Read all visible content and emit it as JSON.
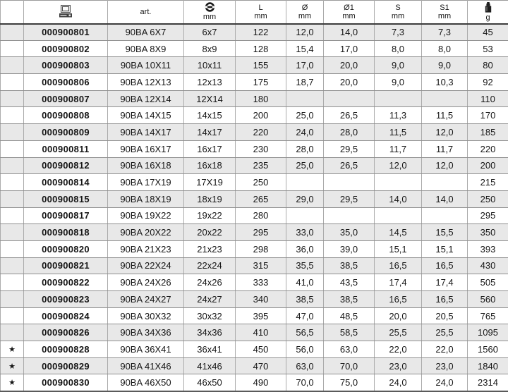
{
  "table": {
    "columns": [
      {
        "key": "star",
        "label": "",
        "unit": ""
      },
      {
        "key": "edp",
        "label": "",
        "unit": "",
        "icon": "computer-icon"
      },
      {
        "key": "art",
        "label": "art.",
        "unit": ""
      },
      {
        "key": "size",
        "label": "",
        "unit": "mm",
        "icon": "ring-size-icon"
      },
      {
        "key": "L",
        "label": "L",
        "unit": "mm"
      },
      {
        "key": "d",
        "label": "Ø",
        "unit": "mm"
      },
      {
        "key": "d1",
        "label": "Ø1",
        "unit": "mm"
      },
      {
        "key": "s",
        "label": "S",
        "unit": "mm"
      },
      {
        "key": "s1",
        "label": "S1",
        "unit": "mm"
      },
      {
        "key": "g",
        "label": "",
        "unit": "g",
        "icon": "weight-icon"
      }
    ],
    "star_glyph": "★",
    "rows": [
      [
        "",
        "000900801",
        "90BA 6X7",
        "6x7",
        "122",
        "12,0",
        "14,0",
        "7,3",
        "7,3",
        "45"
      ],
      [
        "",
        "000900802",
        "90BA 8X9",
        "8x9",
        "128",
        "15,4",
        "17,0",
        "8,0",
        "8,0",
        "53"
      ],
      [
        "",
        "000900803",
        "90BA 10X11",
        "10x11",
        "155",
        "17,0",
        "20,0",
        "9,0",
        "9,0",
        "80"
      ],
      [
        "",
        "000900806",
        "90BA 12X13",
        "12x13",
        "175",
        "18,7",
        "20,0",
        "9,0",
        "10,3",
        "92"
      ],
      [
        "",
        "000900807",
        "90BA 12X14",
        "12X14",
        "180",
        "",
        "",
        "",
        "",
        "110"
      ],
      [
        "",
        "000900808",
        "90BA 14X15",
        "14x15",
        "200",
        "25,0",
        "26,5",
        "11,3",
        "11,5",
        "170"
      ],
      [
        "",
        "000900809",
        "90BA 14X17",
        "14x17",
        "220",
        "24,0",
        "28,0",
        "11,5",
        "12,0",
        "185"
      ],
      [
        "",
        "000900811",
        "90BA 16X17",
        "16x17",
        "230",
        "28,0",
        "29,5",
        "11,7",
        "11,7",
        "220"
      ],
      [
        "",
        "000900812",
        "90BA 16X18",
        "16x18",
        "235",
        "25,0",
        "26,5",
        "12,0",
        "12,0",
        "200"
      ],
      [
        "",
        "000900814",
        "90BA 17X19",
        "17X19",
        "250",
        "",
        "",
        "",
        "",
        "215"
      ],
      [
        "",
        "000900815",
        "90BA 18X19",
        "18x19",
        "265",
        "29,0",
        "29,5",
        "14,0",
        "14,0",
        "250"
      ],
      [
        "",
        "000900817",
        "90BA 19X22",
        "19x22",
        "280",
        "",
        "",
        "",
        "",
        "295"
      ],
      [
        "",
        "000900818",
        "90BA 20X22",
        "20x22",
        "295",
        "33,0",
        "35,0",
        "14,5",
        "15,5",
        "350"
      ],
      [
        "",
        "000900820",
        "90BA 21X23",
        "21x23",
        "298",
        "36,0",
        "39,0",
        "15,1",
        "15,1",
        "393"
      ],
      [
        "",
        "000900821",
        "90BA 22X24",
        "22x24",
        "315",
        "35,5",
        "38,5",
        "16,5",
        "16,5",
        "430"
      ],
      [
        "",
        "000900822",
        "90BA 24X26",
        "24x26",
        "333",
        "41,0",
        "43,5",
        "17,4",
        "17,4",
        "505"
      ],
      [
        "",
        "000900823",
        "90BA 24X27",
        "24x27",
        "340",
        "38,5",
        "38,5",
        "16,5",
        "16,5",
        "560"
      ],
      [
        "",
        "000900824",
        "90BA 30X32",
        "30x32",
        "395",
        "47,0",
        "48,5",
        "20,0",
        "20,5",
        "765"
      ],
      [
        "",
        "000900826",
        "90BA 34X36",
        "34x36",
        "410",
        "56,5",
        "58,5",
        "25,5",
        "25,5",
        "1095"
      ],
      [
        "★",
        "000900828",
        "90BA 36X41",
        "36x41",
        "450",
        "56,0",
        "63,0",
        "22,0",
        "22,0",
        "1560"
      ],
      [
        "★",
        "000900829",
        "90BA 41X46",
        "41x46",
        "470",
        "63,0",
        "70,0",
        "23,0",
        "23,0",
        "1840"
      ],
      [
        "★",
        "000900830",
        "90BA 46X50",
        "46x50",
        "490",
        "70,0",
        "75,0",
        "24,0",
        "24,0",
        "2314"
      ]
    ]
  },
  "colors": {
    "row_shade": "#e8e8e8",
    "grid_vertical": "#ababab",
    "grid_horizontal": "#8f8f8f",
    "header_rule": "#3c3c3c",
    "text": "#161616"
  }
}
